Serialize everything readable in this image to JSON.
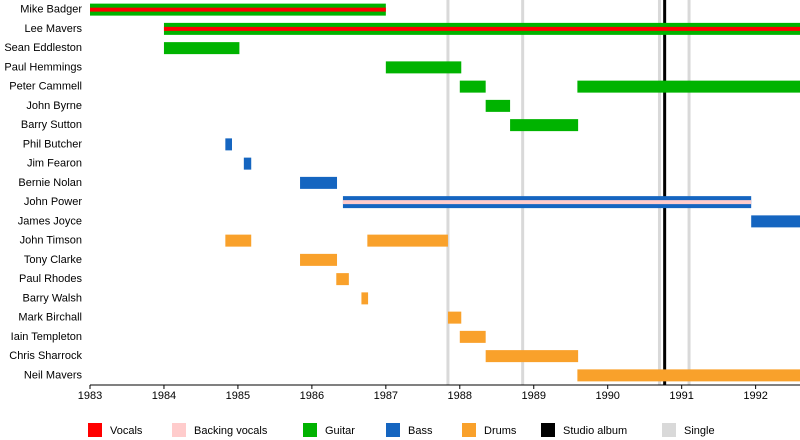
{
  "chart_data": {
    "type": "timeline",
    "xlim": [
      1983,
      1992.6
    ],
    "xticks": [
      1983,
      1984,
      1985,
      1986,
      1987,
      1988,
      1989,
      1990,
      1991,
      1992
    ],
    "rows": [
      {
        "name": "Mike Badger",
        "bars": [
          {
            "start": 1983.0,
            "end": 1987.0,
            "color": "#00b300",
            "stripe": "#ff0000"
          }
        ]
      },
      {
        "name": "Lee Mavers",
        "bars": [
          {
            "start": 1984.0,
            "end": 1992.6,
            "color": "#00b300",
            "stripe": "#ff0000"
          }
        ]
      },
      {
        "name": "Sean Eddleston",
        "bars": [
          {
            "start": 1984.0,
            "end": 1985.02,
            "color": "#00b300"
          }
        ]
      },
      {
        "name": "Paul Hemmings",
        "bars": [
          {
            "start": 1987.0,
            "end": 1988.02,
            "color": "#00b300"
          }
        ]
      },
      {
        "name": "Peter Cammell",
        "bars": [
          {
            "start": 1988.0,
            "end": 1988.35,
            "color": "#00b300"
          },
          {
            "start": 1989.59,
            "end": 1992.6,
            "color": "#00b300"
          }
        ]
      },
      {
        "name": "John Byrne",
        "bars": [
          {
            "start": 1988.35,
            "end": 1988.68,
            "color": "#00b300"
          }
        ]
      },
      {
        "name": "Barry Sutton",
        "bars": [
          {
            "start": 1988.68,
            "end": 1989.6,
            "color": "#00b300"
          }
        ]
      },
      {
        "name": "Phil Butcher",
        "bars": [
          {
            "start": 1984.83,
            "end": 1984.92,
            "color": "#1565c0"
          }
        ]
      },
      {
        "name": "Jim Fearon",
        "bars": [
          {
            "start": 1985.08,
            "end": 1985.18,
            "color": "#1565c0"
          }
        ]
      },
      {
        "name": "Bernie Nolan",
        "bars": [
          {
            "start": 1985.84,
            "end": 1986.34,
            "color": "#1565c0"
          }
        ]
      },
      {
        "name": "John Power",
        "bars": [
          {
            "start": 1986.42,
            "end": 1991.94,
            "color": "#1565c0",
            "stripe": "#ffcccc"
          }
        ]
      },
      {
        "name": "James Joyce",
        "bars": [
          {
            "start": 1991.94,
            "end": 1992.6,
            "color": "#1565c0"
          }
        ]
      },
      {
        "name": "John Timson",
        "bars": [
          {
            "start": 1984.83,
            "end": 1985.18,
            "color": "#f9a12b"
          },
          {
            "start": 1986.75,
            "end": 1987.84,
            "color": "#f9a12b"
          }
        ]
      },
      {
        "name": "Tony Clarke",
        "bars": [
          {
            "start": 1985.84,
            "end": 1986.34,
            "color": "#f9a12b"
          }
        ]
      },
      {
        "name": "Paul Rhodes",
        "bars": [
          {
            "start": 1986.33,
            "end": 1986.5,
            "color": "#f9a12b"
          }
        ]
      },
      {
        "name": "Barry Walsh",
        "bars": [
          {
            "start": 1986.67,
            "end": 1986.76,
            "color": "#f9a12b"
          }
        ]
      },
      {
        "name": "Mark Birchall",
        "bars": [
          {
            "start": 1987.84,
            "end": 1988.02,
            "color": "#f9a12b"
          }
        ]
      },
      {
        "name": "Iain Templeton",
        "bars": [
          {
            "start": 1988.0,
            "end": 1988.35,
            "color": "#f9a12b"
          }
        ]
      },
      {
        "name": "Chris Sharrock",
        "bars": [
          {
            "start": 1988.35,
            "end": 1989.6,
            "color": "#f9a12b"
          }
        ]
      },
      {
        "name": "Neil Mavers",
        "bars": [
          {
            "start": 1989.59,
            "end": 1992.6,
            "color": "#f9a12b"
          }
        ]
      }
    ],
    "events": [
      {
        "x": 1987.84,
        "color": "#d9d9d9"
      },
      {
        "x": 1988.85,
        "color": "#d9d9d9"
      },
      {
        "x": 1990.7,
        "color": "#d9d9d9"
      },
      {
        "x": 1991.1,
        "color": "#d9d9d9"
      },
      {
        "x": 1990.77,
        "color": "#000000"
      }
    ],
    "legend": [
      {
        "name": "Vocals",
        "color": "#ff0000"
      },
      {
        "name": "Backing vocals",
        "color": "#ffcccc"
      },
      {
        "name": "Guitar",
        "color": "#00b300"
      },
      {
        "name": "Bass",
        "color": "#1565c0"
      },
      {
        "name": "Drums",
        "color": "#f9a12b"
      },
      {
        "name": "Studio album",
        "color": "#000000"
      },
      {
        "name": "Single",
        "color": "#d9d9d9"
      }
    ]
  }
}
